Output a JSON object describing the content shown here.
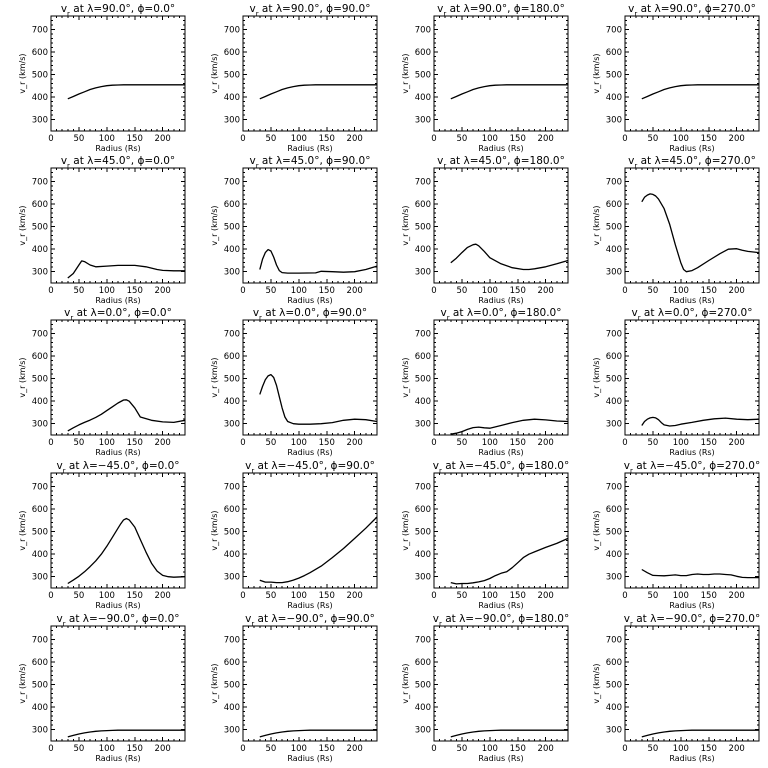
{
  "chart_data": [
    {
      "type": "line",
      "title_prefix": "v",
      "title_sub": "r",
      "title_rest": " at λ=90.0°, ϕ=0.0°",
      "xlabel": "Radius (Rs)",
      "ylabel": "v_r (km/s)",
      "xlim": [
        0,
        240
      ],
      "ylim": [
        250,
        760
      ],
      "xticks": [
        0,
        50,
        100,
        150,
        200
      ],
      "yticks": [
        300,
        400,
        500,
        600,
        700
      ],
      "x": [
        30,
        40,
        50,
        60,
        70,
        80,
        90,
        100,
        110,
        120,
        130,
        150,
        170,
        200,
        240
      ],
      "y": [
        393,
        403,
        414,
        424,
        434,
        441,
        447,
        451,
        453,
        454,
        455,
        455,
        455,
        455,
        455
      ]
    },
    {
      "type": "line",
      "title_prefix": "v",
      "title_sub": "r",
      "title_rest": " at λ=90.0°, ϕ=90.0°",
      "xlabel": "Radius (Rs)",
      "ylabel": "v_r (km/s)",
      "xlim": [
        0,
        240
      ],
      "ylim": [
        250,
        760
      ],
      "xticks": [
        0,
        50,
        100,
        150,
        200
      ],
      "yticks": [
        300,
        400,
        500,
        600,
        700
      ],
      "x": [
        30,
        40,
        50,
        60,
        70,
        80,
        90,
        100,
        110,
        120,
        130,
        150,
        170,
        200,
        240
      ],
      "y": [
        393,
        403,
        414,
        424,
        434,
        441,
        447,
        451,
        453,
        454,
        455,
        455,
        455,
        455,
        455
      ]
    },
    {
      "type": "line",
      "title_prefix": "v",
      "title_sub": "r",
      "title_rest": " at λ=90.0°, ϕ=180.0°",
      "xlabel": "Radius (Rs)",
      "ylabel": "v_r (km/s)",
      "xlim": [
        0,
        240
      ],
      "ylim": [
        250,
        760
      ],
      "xticks": [
        0,
        50,
        100,
        150,
        200
      ],
      "yticks": [
        300,
        400,
        500,
        600,
        700
      ],
      "x": [
        30,
        40,
        50,
        60,
        70,
        80,
        90,
        100,
        110,
        120,
        130,
        150,
        170,
        200,
        240
      ],
      "y": [
        393,
        403,
        414,
        424,
        434,
        441,
        447,
        451,
        453,
        454,
        455,
        455,
        455,
        455,
        455
      ]
    },
    {
      "type": "line",
      "title_prefix": "v",
      "title_sub": "r",
      "title_rest": " at λ=90.0°, ϕ=270.0°",
      "xlabel": "Radius (Rs)",
      "ylabel": "v_r (km/s)",
      "xlim": [
        0,
        240
      ],
      "ylim": [
        250,
        760
      ],
      "xticks": [
        0,
        50,
        100,
        150,
        200
      ],
      "yticks": [
        300,
        400,
        500,
        600,
        700
      ],
      "x": [
        30,
        40,
        50,
        60,
        70,
        80,
        90,
        100,
        110,
        120,
        130,
        150,
        170,
        200,
        240
      ],
      "y": [
        393,
        403,
        414,
        424,
        434,
        441,
        447,
        451,
        453,
        454,
        455,
        455,
        455,
        455,
        455
      ]
    },
    {
      "type": "line",
      "title_prefix": "v",
      "title_sub": "r",
      "title_rest": " at λ=45.0°, ϕ=0.0°",
      "xlabel": "Radius (Rs)",
      "ylabel": "v_r (km/s)",
      "xlim": [
        0,
        240
      ],
      "ylim": [
        250,
        760
      ],
      "xticks": [
        0,
        50,
        100,
        150,
        200
      ],
      "yticks": [
        300,
        400,
        500,
        600,
        700
      ],
      "x": [
        30,
        40,
        50,
        55,
        60,
        70,
        80,
        100,
        120,
        150,
        170,
        190,
        200,
        220,
        240
      ],
      "y": [
        272,
        292,
        330,
        348,
        345,
        330,
        322,
        325,
        328,
        328,
        322,
        310,
        306,
        304,
        304
      ]
    },
    {
      "type": "line",
      "title_prefix": "v",
      "title_sub": "r",
      "title_rest": " at λ=45.0°, ϕ=90.0°",
      "xlabel": "Radius (Rs)",
      "ylabel": "v_r (km/s)",
      "xlim": [
        0,
        240
      ],
      "ylim": [
        250,
        760
      ],
      "xticks": [
        0,
        50,
        100,
        150,
        200
      ],
      "yticks": [
        300,
        400,
        500,
        600,
        700
      ],
      "x": [
        30,
        35,
        40,
        45,
        50,
        55,
        60,
        65,
        70,
        80,
        100,
        130,
        140,
        160,
        180,
        200,
        220,
        240
      ],
      "y": [
        310,
        355,
        385,
        398,
        392,
        365,
        330,
        305,
        296,
        294,
        294,
        295,
        302,
        300,
        298,
        300,
        310,
        325
      ]
    },
    {
      "type": "line",
      "title_prefix": "v",
      "title_sub": "r",
      "title_rest": " at λ=45.0°, ϕ=180.0°",
      "xlabel": "Radius (Rs)",
      "ylabel": "v_r (km/s)",
      "xlim": [
        0,
        240
      ],
      "ylim": [
        250,
        760
      ],
      "xticks": [
        0,
        50,
        100,
        150,
        200
      ],
      "yticks": [
        300,
        400,
        500,
        600,
        700
      ],
      "x": [
        30,
        40,
        50,
        60,
        70,
        75,
        80,
        90,
        100,
        120,
        140,
        160,
        170,
        180,
        200,
        220,
        240
      ],
      "y": [
        340,
        360,
        385,
        408,
        420,
        422,
        415,
        390,
        362,
        335,
        318,
        310,
        310,
        313,
        322,
        335,
        350
      ]
    },
    {
      "type": "line",
      "title_prefix": "v",
      "title_sub": "r",
      "title_rest": " at λ=45.0°, ϕ=270.0°",
      "xlabel": "Radius (Rs)",
      "ylabel": "v_r (km/s)",
      "xlim": [
        0,
        240
      ],
      "ylim": [
        250,
        760
      ],
      "xticks": [
        0,
        50,
        100,
        150,
        200
      ],
      "yticks": [
        300,
        400,
        500,
        600,
        700
      ],
      "x": [
        30,
        35,
        40,
        45,
        50,
        55,
        60,
        70,
        80,
        90,
        100,
        105,
        110,
        120,
        130,
        150,
        170,
        185,
        200,
        210,
        220,
        240
      ],
      "y": [
        610,
        630,
        640,
        645,
        643,
        636,
        622,
        580,
        510,
        420,
        340,
        310,
        300,
        305,
        318,
        350,
        380,
        400,
        402,
        395,
        390,
        385
      ]
    },
    {
      "type": "line",
      "title_prefix": "v",
      "title_sub": "r",
      "title_rest": " at λ=0.0°, ϕ=0.0°",
      "xlabel": "Radius (Rs)",
      "ylabel": "v_r (km/s)",
      "xlim": [
        0,
        240
      ],
      "ylim": [
        250,
        760
      ],
      "xticks": [
        0,
        50,
        100,
        150,
        200
      ],
      "yticks": [
        300,
        400,
        500,
        600,
        700
      ],
      "x": [
        30,
        40,
        50,
        60,
        70,
        80,
        90,
        100,
        110,
        120,
        130,
        135,
        140,
        150,
        160,
        180,
        200,
        220,
        240
      ],
      "y": [
        268,
        282,
        295,
        306,
        316,
        328,
        342,
        358,
        375,
        392,
        405,
        406,
        400,
        370,
        330,
        315,
        308,
        306,
        315
      ]
    },
    {
      "type": "line",
      "title_prefix": "v",
      "title_sub": "r",
      "title_rest": " at λ=0.0°, ϕ=90.0°",
      "xlabel": "Radius (Rs)",
      "ylabel": "v_r (km/s)",
      "xlim": [
        0,
        240
      ],
      "ylim": [
        250,
        760
      ],
      "xticks": [
        0,
        50,
        100,
        150,
        200
      ],
      "yticks": [
        300,
        400,
        500,
        600,
        700
      ],
      "x": [
        30,
        35,
        40,
        45,
        50,
        55,
        60,
        65,
        70,
        75,
        80,
        90,
        100,
        120,
        140,
        160,
        180,
        200,
        220,
        240
      ],
      "y": [
        430,
        465,
        495,
        512,
        518,
        505,
        470,
        420,
        370,
        330,
        310,
        300,
        298,
        298,
        300,
        305,
        315,
        320,
        318,
        310
      ]
    },
    {
      "type": "line",
      "title_prefix": "v",
      "title_sub": "r",
      "title_rest": " at λ=0.0°, ϕ=180.0°",
      "xlabel": "Radius (Rs)",
      "ylabel": "v_r (km/s)",
      "xlim": [
        0,
        240
      ],
      "ylim": [
        250,
        760
      ],
      "xticks": [
        0,
        50,
        100,
        150,
        200
      ],
      "yticks": [
        300,
        400,
        500,
        600,
        700
      ],
      "x": [
        30,
        40,
        50,
        60,
        70,
        80,
        90,
        100,
        120,
        140,
        160,
        180,
        200,
        220,
        240
      ],
      "y": [
        254,
        258,
        265,
        275,
        283,
        285,
        282,
        280,
        292,
        305,
        315,
        320,
        317,
        312,
        310
      ]
    },
    {
      "type": "line",
      "title_prefix": "v",
      "title_sub": "r",
      "title_rest": " at λ=0.0°, ϕ=270.0°",
      "xlabel": "Radius (Rs)",
      "ylabel": "v_r (km/s)",
      "xlim": [
        0,
        240
      ],
      "ylim": [
        250,
        760
      ],
      "xticks": [
        0,
        50,
        100,
        150,
        200
      ],
      "yticks": [
        300,
        400,
        500,
        600,
        700
      ],
      "x": [
        30,
        35,
        40,
        45,
        50,
        55,
        60,
        65,
        70,
        80,
        90,
        100,
        120,
        140,
        160,
        180,
        200,
        220,
        240
      ],
      "y": [
        292,
        310,
        320,
        326,
        328,
        326,
        318,
        305,
        295,
        290,
        292,
        298,
        306,
        315,
        322,
        325,
        320,
        318,
        320
      ]
    },
    {
      "type": "line",
      "title_prefix": "v",
      "title_sub": "r",
      "title_rest": " at λ=−45.0°, ϕ=0.0°",
      "xlabel": "Radius (Rs)",
      "ylabel": "v_r (km/s)",
      "xlim": [
        0,
        240
      ],
      "ylim": [
        250,
        760
      ],
      "xticks": [
        0,
        50,
        100,
        150,
        200
      ],
      "yticks": [
        300,
        400,
        500,
        600,
        700
      ],
      "x": [
        30,
        40,
        50,
        60,
        70,
        80,
        90,
        100,
        110,
        120,
        125,
        130,
        135,
        140,
        150,
        160,
        170,
        180,
        190,
        200,
        210,
        220,
        240
      ],
      "y": [
        270,
        285,
        302,
        322,
        345,
        370,
        400,
        435,
        475,
        515,
        535,
        552,
        558,
        552,
        520,
        465,
        410,
        360,
        325,
        306,
        300,
        298,
        300
      ]
    },
    {
      "type": "line",
      "title_prefix": "v",
      "title_sub": "r",
      "title_rest": " at λ=−45.0°, ϕ=90.0°",
      "xlabel": "Radius (Rs)",
      "ylabel": "v_r (km/s)",
      "xlim": [
        0,
        240
      ],
      "ylim": [
        250,
        760
      ],
      "xticks": [
        0,
        50,
        100,
        150,
        200
      ],
      "yticks": [
        300,
        400,
        500,
        600,
        700
      ],
      "x": [
        30,
        40,
        50,
        60,
        70,
        80,
        90,
        100,
        110,
        120,
        140,
        160,
        180,
        200,
        220,
        240
      ],
      "y": [
        284,
        276,
        276,
        274,
        274,
        278,
        285,
        294,
        305,
        318,
        347,
        385,
        425,
        470,
        515,
        565
      ]
    },
    {
      "type": "line",
      "title_prefix": "v",
      "title_sub": "r",
      "title_rest": " at λ=−45.0°, ϕ=180.0°",
      "xlabel": "Radius (Rs)",
      "ylabel": "v_r (km/s)",
      "xlim": [
        0,
        240
      ],
      "ylim": [
        250,
        760
      ],
      "xticks": [
        0,
        50,
        100,
        150,
        200
      ],
      "yticks": [
        300,
        400,
        500,
        600,
        700
      ],
      "x": [
        30,
        40,
        50,
        60,
        70,
        80,
        90,
        100,
        110,
        120,
        130,
        140,
        150,
        160,
        170,
        180,
        200,
        220,
        240
      ],
      "y": [
        274,
        268,
        270,
        270,
        273,
        277,
        283,
        292,
        305,
        315,
        322,
        340,
        362,
        385,
        400,
        410,
        430,
        448,
        470
      ]
    },
    {
      "type": "line",
      "title_prefix": "v",
      "title_sub": "r",
      "title_rest": " at λ=−45.0°, ϕ=270.0°",
      "xlabel": "Radius (Rs)",
      "ylabel": "v_r (km/s)",
      "xlim": [
        0,
        240
      ],
      "ylim": [
        250,
        760
      ],
      "xticks": [
        0,
        50,
        100,
        150,
        200
      ],
      "yticks": [
        300,
        400,
        500,
        600,
        700
      ],
      "x": [
        30,
        40,
        50,
        60,
        70,
        80,
        90,
        100,
        110,
        120,
        130,
        140,
        150,
        160,
        170,
        180,
        190,
        200,
        210,
        220,
        240
      ],
      "y": [
        332,
        318,
        306,
        305,
        304,
        306,
        308,
        305,
        305,
        310,
        312,
        310,
        310,
        312,
        312,
        310,
        308,
        302,
        297,
        296,
        296
      ]
    },
    {
      "type": "line",
      "title_prefix": "v",
      "title_sub": "r",
      "title_rest": " at λ=−90.0°, ϕ=0.0°",
      "xlabel": "Radius (Rs)",
      "ylabel": "v_r (km/s)",
      "xlim": [
        0,
        240
      ],
      "ylim": [
        250,
        760
      ],
      "xticks": [
        0,
        50,
        100,
        150,
        200
      ],
      "yticks": [
        300,
        400,
        500,
        600,
        700
      ],
      "x": [
        30,
        40,
        50,
        60,
        70,
        80,
        90,
        100,
        110,
        120,
        130,
        150,
        180,
        210,
        240
      ],
      "y": [
        268,
        275,
        281,
        286,
        290,
        293,
        295,
        296,
        297,
        298,
        298,
        298,
        298,
        298,
        298
      ]
    },
    {
      "type": "line",
      "title_prefix": "v",
      "title_sub": "r",
      "title_rest": " at λ=−90.0°, ϕ=90.0°",
      "xlabel": "Radius (Rs)",
      "ylabel": "v_r (km/s)",
      "xlim": [
        0,
        240
      ],
      "ylim": [
        250,
        760
      ],
      "xticks": [
        0,
        50,
        100,
        150,
        200
      ],
      "yticks": [
        300,
        400,
        500,
        600,
        700
      ],
      "x": [
        30,
        40,
        50,
        60,
        70,
        80,
        90,
        100,
        110,
        120,
        130,
        150,
        180,
        210,
        240
      ],
      "y": [
        268,
        275,
        281,
        286,
        290,
        293,
        295,
        296,
        297,
        298,
        298,
        298,
        298,
        298,
        298
      ]
    },
    {
      "type": "line",
      "title_prefix": "v",
      "title_sub": "r",
      "title_rest": " at λ=−90.0°, ϕ=180.0°",
      "xlabel": "Radius (Rs)",
      "ylabel": "v_r (km/s)",
      "xlim": [
        0,
        240
      ],
      "ylim": [
        250,
        760
      ],
      "xticks": [
        0,
        50,
        100,
        150,
        200
      ],
      "yticks": [
        300,
        400,
        500,
        600,
        700
      ],
      "x": [
        30,
        40,
        50,
        60,
        70,
        80,
        90,
        100,
        110,
        120,
        130,
        150,
        180,
        210,
        240
      ],
      "y": [
        268,
        275,
        281,
        286,
        290,
        293,
        295,
        296,
        297,
        298,
        298,
        298,
        298,
        298,
        298
      ]
    },
    {
      "type": "line",
      "title_prefix": "v",
      "title_sub": "r",
      "title_rest": " at λ=−90.0°, ϕ=270.0°",
      "xlabel": "Radius (Rs)",
      "ylabel": "v_r (km/s)",
      "xlim": [
        0,
        240
      ],
      "ylim": [
        250,
        760
      ],
      "xticks": [
        0,
        50,
        100,
        150,
        200
      ],
      "yticks": [
        300,
        400,
        500,
        600,
        700
      ],
      "x": [
        30,
        40,
        50,
        60,
        70,
        80,
        90,
        100,
        110,
        120,
        130,
        150,
        180,
        210,
        240
      ],
      "y": [
        268,
        275,
        281,
        286,
        290,
        293,
        295,
        296,
        297,
        298,
        298,
        298,
        298,
        298,
        298
      ]
    }
  ]
}
